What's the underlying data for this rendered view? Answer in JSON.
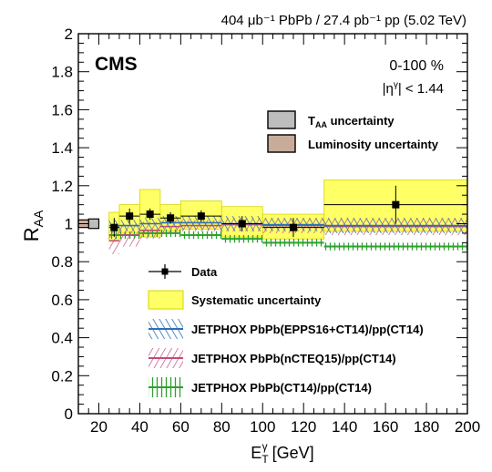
{
  "chart_data": {
    "type": "scatter",
    "header": "404 μb⁻¹ PbPb / 27.4 pb⁻¹ pp (5.02 TeV)",
    "experiment": "CMS",
    "centrality": "0-100 %",
    "eta_cut": "|η^γ| < 1.44",
    "xlabel": "E_T^γ [GeV]",
    "ylabel": "R_AA",
    "xlim": [
      10,
      200
    ],
    "ylim": [
      0,
      2
    ],
    "x_ticks": [
      20,
      40,
      60,
      80,
      100,
      120,
      140,
      160,
      180,
      200
    ],
    "y_ticks": [
      0,
      0.2,
      0.4,
      0.6,
      0.8,
      1,
      1.2,
      1.4,
      1.6,
      1.8,
      2
    ],
    "norm_boxes": [
      {
        "label": "T_AA uncertainty",
        "color": "#bdbdbd",
        "x": [
          15,
          20
        ],
        "y": [
          0.975,
          1.025
        ]
      },
      {
        "label": "Luminosity uncertainty",
        "color": "#c8ab99",
        "x": [
          10,
          15
        ],
        "y": [
          0.98,
          1.02
        ]
      }
    ],
    "bins": [
      {
        "x": [
          25,
          30
        ],
        "data": 0.98,
        "stat": 0.05,
        "syst": [
          0.91,
          1.06
        ],
        "epps": [
          0.96,
          1.02
        ],
        "ncteq": [
          0.84,
          0.98
        ],
        "ct14": 0.94
      },
      {
        "x": [
          30,
          40
        ],
        "data": 1.04,
        "stat": 0.04,
        "syst": [
          0.95,
          1.1
        ],
        "epps": [
          0.96,
          1.02
        ],
        "ncteq": [
          0.88,
          1.0
        ],
        "ct14": 0.94
      },
      {
        "x": [
          40,
          50
        ],
        "data": 1.05,
        "stat": 0.03,
        "syst": [
          0.93,
          1.18
        ],
        "epps": [
          0.97,
          1.03
        ],
        "ncteq": [
          0.92,
          1.01
        ],
        "ct14": 0.95
      },
      {
        "x": [
          50,
          60
        ],
        "data": 1.03,
        "stat": 0.03,
        "syst": [
          0.96,
          1.1
        ],
        "epps": [
          0.97,
          1.04
        ],
        "ncteq": [
          0.95,
          1.02
        ],
        "ct14": 0.95
      },
      {
        "x": [
          60,
          80
        ],
        "data": 1.04,
        "stat": 0.03,
        "syst": [
          0.97,
          1.12
        ],
        "epps": [
          0.97,
          1.04
        ],
        "ncteq": [
          0.96,
          1.02
        ],
        "ct14": 0.94
      },
      {
        "x": [
          80,
          100
        ],
        "data": 1.0,
        "stat": 0.04,
        "syst": [
          0.93,
          1.09
        ],
        "epps": [
          0.96,
          1.04
        ],
        "ncteq": [
          0.96,
          1.03
        ],
        "ct14": 0.92
      },
      {
        "x": [
          100,
          130
        ],
        "data": 0.98,
        "stat": 0.05,
        "syst": [
          0.92,
          1.05
        ],
        "epps": [
          0.96,
          1.03
        ],
        "ncteq": [
          0.95,
          1.03
        ],
        "ct14": 0.9
      },
      {
        "x": [
          130,
          200
        ],
        "data": 1.1,
        "stat": 0.1,
        "syst": [
          0.96,
          1.23
        ],
        "epps": [
          0.95,
          1.03
        ],
        "ncteq": [
          0.94,
          1.03
        ],
        "ct14": 0.88
      }
    ],
    "legend": [
      {
        "kind": "data",
        "label": "Data"
      },
      {
        "kind": "syst",
        "label": "Systematic uncertainty"
      },
      {
        "kind": "epps",
        "label": "JETPHOX PbPb(EPPS16+CT14)/pp(CT14)"
      },
      {
        "kind": "ncteq",
        "label": "JETPHOX PbPb(nCTEQ15)/pp(CT14)"
      },
      {
        "kind": "ct14",
        "label": "JETPHOX PbPb(CT14)/pp(CT14)"
      }
    ],
    "colors": {
      "syst": "#ffff66",
      "syst_edge": "#d6d600",
      "epps": "#2c6fb6",
      "ncteq": "#c24b7a",
      "ct14": "#2ea12e",
      "data": "#000000"
    }
  }
}
